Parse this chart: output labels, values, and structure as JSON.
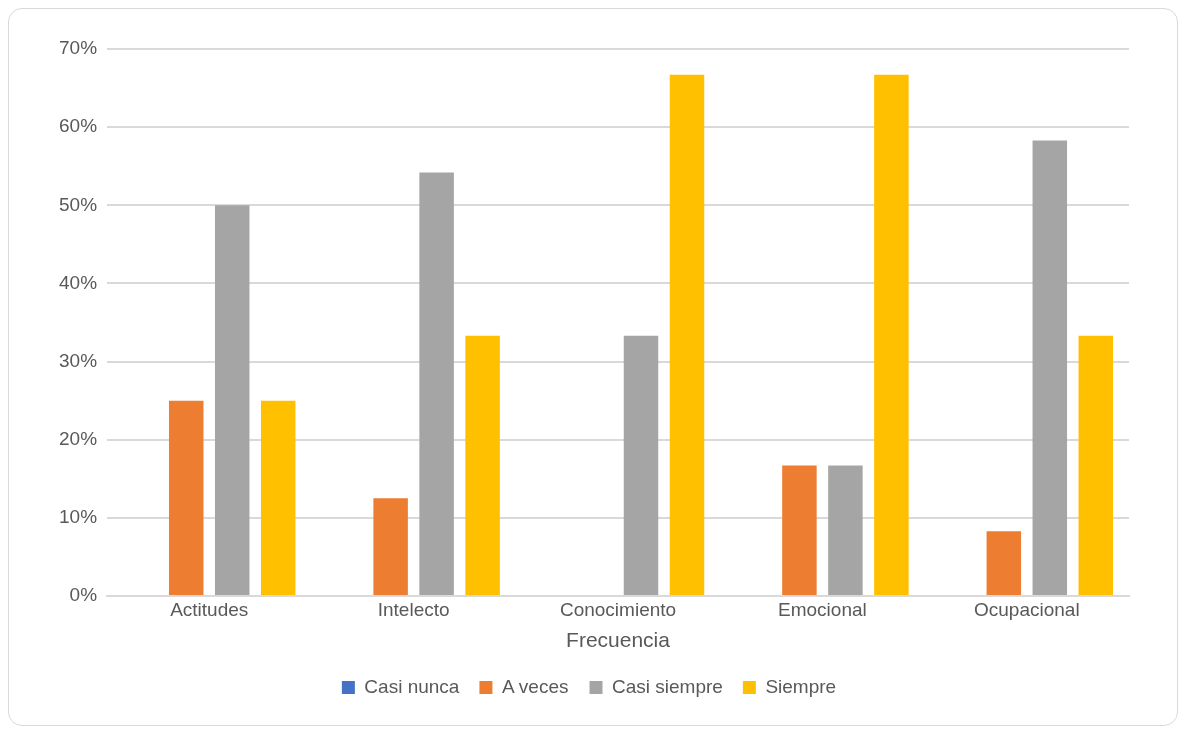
{
  "chart_data": {
    "type": "bar",
    "xlabel": "Frecuencia",
    "categories": [
      "Actitudes",
      "Intelecto",
      "Conocimiento",
      "Emocional",
      "Ocupacional"
    ],
    "series": [
      {
        "name": "Casi nunca",
        "color": "#4472c4",
        "values": [
          0,
          0,
          0,
          0,
          0
        ]
      },
      {
        "name": "A veces",
        "color": "#ed7d31",
        "values": [
          25,
          12.5,
          0,
          16.7,
          8.3
        ]
      },
      {
        "name": "Casi siempre",
        "color": "#a5a5a5",
        "values": [
          50,
          54.2,
          33.3,
          16.7,
          58.3
        ]
      },
      {
        "name": "Siempre",
        "color": "#ffc000",
        "values": [
          25,
          33.3,
          66.7,
          66.7,
          33.3
        ]
      }
    ],
    "ylim": [
      0,
      70
    ],
    "yticks": [
      {
        "value": 0,
        "label": "0%"
      },
      {
        "value": 10,
        "label": "10%"
      },
      {
        "value": 20,
        "label": "20%"
      },
      {
        "value": 30,
        "label": "30%"
      },
      {
        "value": 40,
        "label": "40%"
      },
      {
        "value": 50,
        "label": "50%"
      },
      {
        "value": 60,
        "label": "60%"
      },
      {
        "value": 70,
        "label": "70%"
      }
    ],
    "grid": "y",
    "legend": "bottom"
  }
}
